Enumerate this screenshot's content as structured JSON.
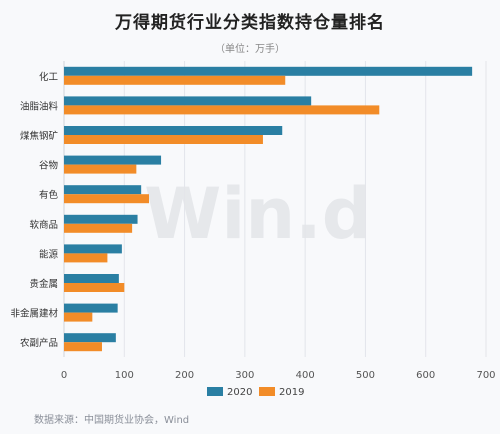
{
  "watermark": "Win.d",
  "footer": {
    "source": "数据来源：中国期货业协会，Wind"
  },
  "chart_data": {
    "type": "bar",
    "orientation": "horizontal",
    "title": "万得期货行业分类指数持仓量排名",
    "subtitle": "（单位：万手）",
    "categories": [
      "化工",
      "油脂油料",
      "煤焦钢矿",
      "谷物",
      "有色",
      "软商品",
      "能源",
      "贵金属",
      "非金属建材",
      "农副产品"
    ],
    "series": [
      {
        "name": "2020",
        "color": "#2a7fa3",
        "values": [
          677,
          410,
          362,
          161,
          128,
          122,
          96,
          91,
          89,
          86
        ]
      },
      {
        "name": "2019",
        "color": "#f28c28",
        "values": [
          367,
          523,
          330,
          120,
          141,
          113,
          72,
          100,
          47,
          63
        ]
      }
    ],
    "xlim": [
      0,
      700
    ],
    "xticks": [
      "0",
      "100",
      "200",
      "300",
      "400",
      "500",
      "600",
      "700"
    ],
    "grid": true,
    "legend_position": "bottom"
  }
}
